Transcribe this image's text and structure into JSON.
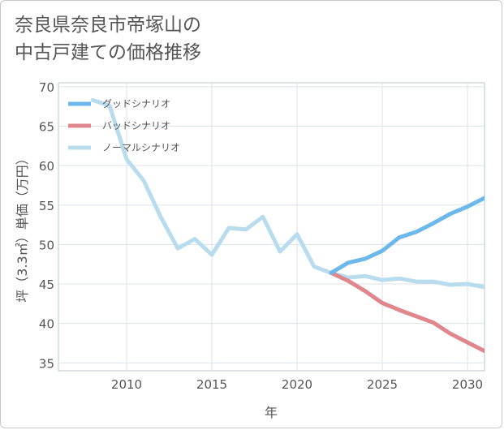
{
  "title": {
    "line1": "奈良県奈良市帝塚山の",
    "line2": "中古戸建ての価格推移"
  },
  "chart_data": {
    "type": "line",
    "xlabel": "年",
    "ylabel": "坪（3.3㎡）単価（万円）",
    "xlim": [
      2006,
      2031
    ],
    "ylim": [
      34,
      70.5
    ],
    "x_ticks": [
      2010,
      2015,
      2020,
      2025,
      2030
    ],
    "y_ticks": [
      35,
      40,
      45,
      50,
      55,
      60,
      65,
      70
    ],
    "grid": true,
    "legend_position": "top-left",
    "series": [
      {
        "name": "グッドシナリオ",
        "color": "#6cb8ea",
        "x": [
          2022,
          2023,
          2024,
          2025,
          2026,
          2027,
          2028,
          2029,
          2030,
          2031
        ],
        "y": [
          46.4,
          47.7,
          48.2,
          49.2,
          50.9,
          51.6,
          52.7,
          53.9,
          54.8,
          55.9
        ]
      },
      {
        "name": "バッドシナリオ",
        "color": "#e0868d",
        "x": [
          2022,
          2023,
          2024,
          2025,
          2026,
          2027,
          2028,
          2029,
          2030,
          2031
        ],
        "y": [
          46.4,
          45.4,
          44.1,
          42.6,
          41.7,
          40.9,
          40.1,
          38.7,
          37.6,
          36.5
        ]
      },
      {
        "name": "ノーマルシナリオ",
        "color": "#b8dcee",
        "x": [
          2008,
          2009,
          2010,
          2011,
          2012,
          2013,
          2014,
          2015,
          2016,
          2017,
          2018,
          2019,
          2020,
          2021,
          2022,
          2023,
          2024,
          2025,
          2026,
          2027,
          2028,
          2029,
          2030,
          2031
        ],
        "y": [
          68.3,
          67.6,
          60.8,
          58.1,
          53.5,
          49.5,
          50.7,
          48.7,
          52.1,
          51.9,
          53.5,
          49.1,
          51.3,
          47.2,
          46.4,
          45.8,
          46.0,
          45.5,
          45.7,
          45.3,
          45.3,
          44.9,
          45.0,
          44.6
        ]
      }
    ]
  }
}
